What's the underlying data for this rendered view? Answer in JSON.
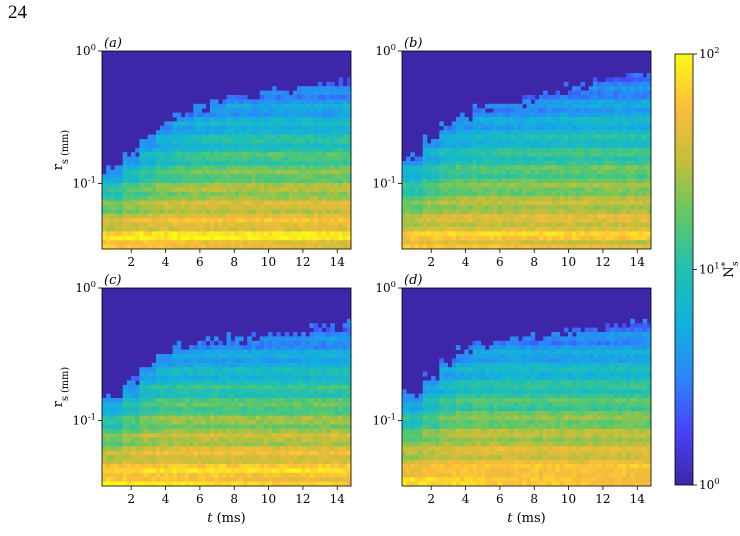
{
  "page_number": "24",
  "colors": {
    "low": "#3e26a8",
    "high": "#f9fb15",
    "frame": "#000000"
  },
  "chart_data": {
    "type": "heatmap",
    "colormap": "parula",
    "x_axis": {
      "label": "t (ms)",
      "range": [
        0.3,
        14.8
      ],
      "ticks": [
        "2",
        "4",
        "6",
        "8",
        "10",
        "12",
        "14"
      ],
      "tick_values": [
        2,
        4,
        6,
        8,
        10,
        12,
        14
      ]
    },
    "y_axis": {
      "label": "r_s (mm)",
      "scale": "log",
      "range": [
        0.032,
        1.0
      ],
      "ticks": [
        "10^-1",
        "10^0"
      ],
      "tick_values": [
        0.1,
        1.0
      ]
    },
    "colorbar": {
      "label": "N_s^*",
      "scale": "log",
      "range": [
        1,
        100
      ],
      "ticks": [
        "10^0",
        "10^1",
        "10^2"
      ],
      "tick_values": [
        1,
        10,
        100
      ],
      "position": "right"
    },
    "grid": false,
    "panels": [
      {
        "label": "(a)",
        "r_max": [
          0.13,
          0.17,
          0.22,
          0.28,
          0.33,
          0.38,
          0.42,
          0.45,
          0.47,
          0.5,
          0.52,
          0.54,
          0.56,
          0.58,
          0.6
        ],
        "peak": 100
      },
      {
        "label": "(b)",
        "r_max": [
          0.16,
          0.22,
          0.28,
          0.33,
          0.37,
          0.4,
          0.42,
          0.45,
          0.48,
          0.52,
          0.56,
          0.6,
          0.63,
          0.66,
          0.68
        ],
        "peak": 80
      },
      {
        "label": "(c)",
        "r_max": [
          0.15,
          0.2,
          0.27,
          0.33,
          0.37,
          0.39,
          0.4,
          0.41,
          0.42,
          0.43,
          0.45,
          0.47,
          0.5,
          0.52,
          0.54
        ],
        "peak": 100
      },
      {
        "label": "(d)",
        "r_max": [
          0.16,
          0.21,
          0.28,
          0.34,
          0.38,
          0.41,
          0.42,
          0.43,
          0.44,
          0.46,
          0.48,
          0.5,
          0.53,
          0.56,
          0.58
        ],
        "peak": 90
      }
    ]
  }
}
